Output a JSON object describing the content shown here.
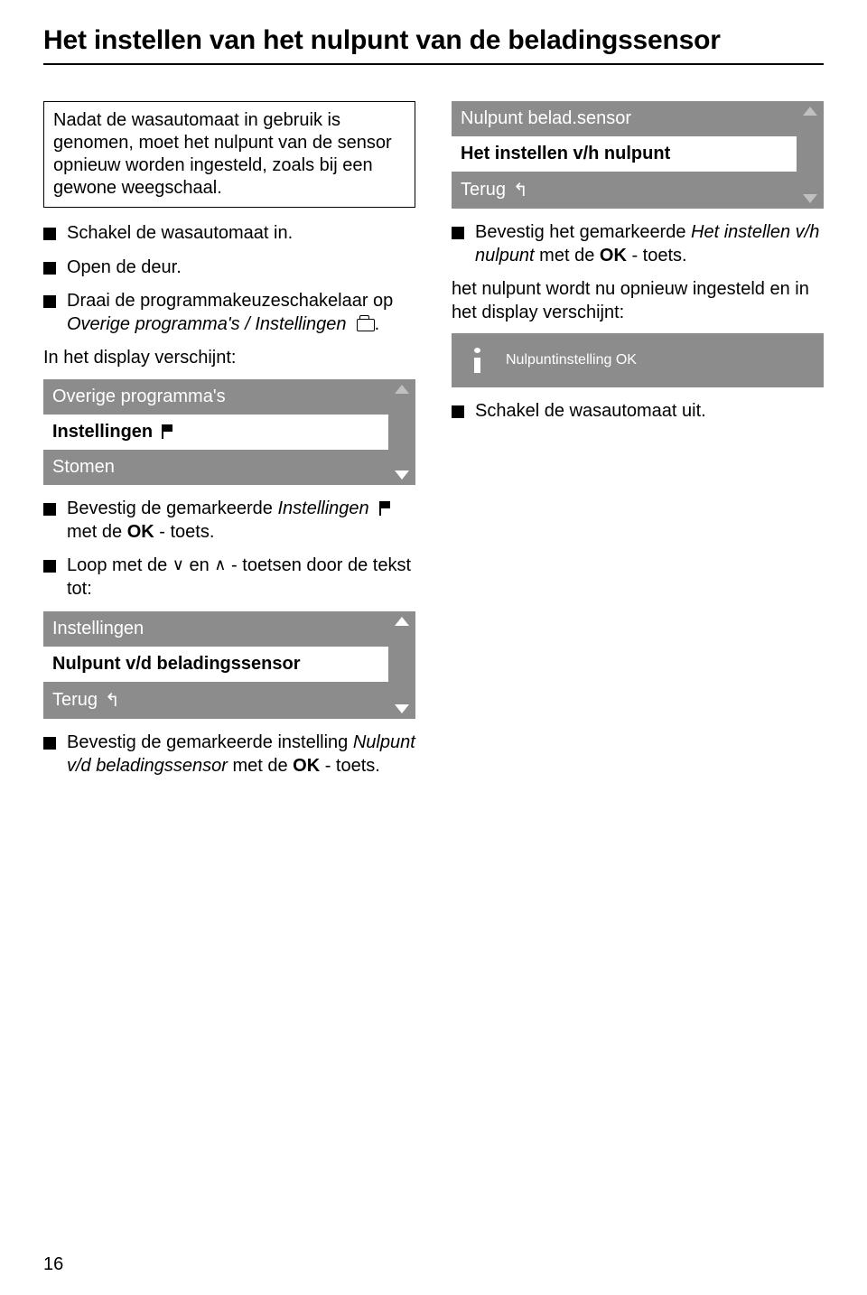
{
  "page": {
    "title": "Het instellen van het nulpunt van de beladingssensor",
    "number": "16"
  },
  "colors": {
    "panel_bg": "#8c8c8c",
    "panel_fg": "#ffffff",
    "text": "#000000",
    "background": "#ffffff"
  },
  "left": {
    "intro": "Nadat de wasautomaat in gebruik is genomen, moet het nulpunt van de sensor opnieuw worden ingesteld, zoals bij een gewone weegschaal.",
    "b1": "Schakel de wasautomaat in.",
    "b2": "Open de deur.",
    "b3_pre": "Draai de programmakeuzescha­ke­laar op ",
    "b3_italic": "Overige programma's / In­stellingen",
    "b3_post": ".",
    "p_display": "In het display verschijnt:",
    "panel1": {
      "header": "Overige programma's",
      "selected": "Instellingen",
      "footer": "Stomen"
    },
    "b4_pre": "Bevestig de gemarkeerde ",
    "b4_italic": "Instel­lingen",
    "b4_mid": " met de ",
    "b4_bold": "OK",
    "b4_post": " - toets.",
    "b5_pre": "Loop met de ",
    "b5_caret1": "∨",
    "b5_mid1": " en ",
    "b5_caret2": "∧",
    "b5_post": " - toetsen door de tekst tot:",
    "panel2": {
      "header": "Instellingen",
      "selected": "Nulpunt v/d beladingssensor",
      "footer": "Terug"
    },
    "b6_pre": "Bevestig de gemarkeerde instelling ",
    "b6_italic": "Nulpunt v/d beladingssensor",
    "b6_mid": " met de ",
    "b6_bold": "OK",
    "b6_post": " - toets."
  },
  "right": {
    "panel3": {
      "header": "Nulpunt belad.sensor",
      "selected": "Het instellen v/h nulpunt",
      "footer": "Terug"
    },
    "b1_pre": "Bevestig het gemarkeerde ",
    "b1_italic": "Het instel­len v/h nulpunt",
    "b1_mid": " met de ",
    "b1_bold": "OK",
    "b1_post": " - toets.",
    "p1": "het nulpunt wordt nu opnieuw ingesteld en in het display verschijnt:",
    "info_text": "Nulpuntinstelling OK",
    "b2": "Schakel de wasautomaat uit."
  }
}
